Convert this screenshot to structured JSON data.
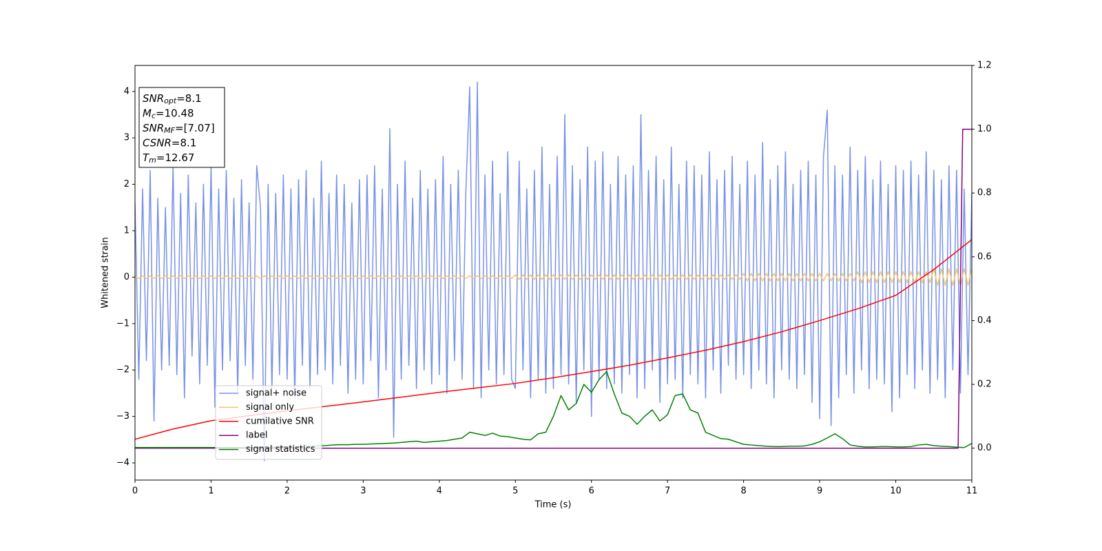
{
  "chart_data": {
    "type": "line",
    "xlabel": "Time (s)",
    "ylabel": "Whitened strain",
    "xlim": [
      0,
      11
    ],
    "ylim": [
      -4.37,
      4.56
    ],
    "y2lim": [
      -0.1,
      1.2
    ],
    "xticks": [
      0,
      1,
      2,
      3,
      4,
      5,
      6,
      7,
      8,
      9,
      10,
      11
    ],
    "yticks": [
      {
        "value": -4,
        "label": "−4"
      },
      {
        "value": -3,
        "label": "−3"
      },
      {
        "value": -2,
        "label": "−2"
      },
      {
        "value": -1,
        "label": "−1"
      },
      0,
      1,
      2,
      3,
      4
    ],
    "y2ticks": [
      {
        "value": 0,
        "label": "0.0"
      },
      0.2,
      0.4,
      0.6,
      0.8,
      {
        "value": 1,
        "label": "1.0"
      },
      1.2
    ],
    "annotation_lines": [
      {
        "text": "SNR",
        "sub": "opt",
        "rest": "=8.1"
      },
      {
        "text": "M",
        "sub": "c",
        "rest": "=10.48"
      },
      {
        "text": "SNR",
        "sub": "MF",
        "rest": "=[7.07]"
      },
      {
        "text": "CSNR",
        "rest": "=8.1"
      },
      {
        "text": "T",
        "sub": "m",
        "rest": "=12.67"
      }
    ],
    "x": [
      0,
      0.05,
      0.1,
      0.15,
      0.2,
      0.25,
      0.3,
      0.35,
      0.4,
      0.45,
      0.5,
      0.55,
      0.6,
      0.65,
      0.7,
      0.75,
      0.8,
      0.85,
      0.9,
      0.95,
      1,
      1.05,
      1.1,
      1.15,
      1.2,
      1.25,
      1.3,
      1.35,
      1.4,
      1.45,
      1.5,
      1.55,
      1.6,
      1.65,
      1.7,
      1.75,
      1.8,
      1.85,
      1.9,
      1.95,
      2,
      2.05,
      2.1,
      2.15,
      2.2,
      2.25,
      2.3,
      2.35,
      2.4,
      2.45,
      2.5,
      2.55,
      2.6,
      2.65,
      2.7,
      2.75,
      2.8,
      2.85,
      2.9,
      2.95,
      3,
      3.05,
      3.1,
      3.15,
      3.2,
      3.25,
      3.3,
      3.35,
      3.4,
      3.45,
      3.5,
      3.55,
      3.6,
      3.65,
      3.7,
      3.75,
      3.8,
      3.85,
      3.9,
      3.95,
      4,
      4.05,
      4.1,
      4.15,
      4.2,
      4.25,
      4.3,
      4.35,
      4.4,
      4.45,
      4.5,
      4.55,
      4.6,
      4.65,
      4.7,
      4.75,
      4.8,
      4.85,
      4.9,
      4.95,
      5,
      5.05,
      5.1,
      5.15,
      5.2,
      5.25,
      5.3,
      5.35,
      5.4,
      5.45,
      5.5,
      5.55,
      5.6,
      5.65,
      5.7,
      5.75,
      5.8,
      5.85,
      5.9,
      5.95,
      6,
      6.05,
      6.1,
      6.15,
      6.2,
      6.25,
      6.3,
      6.35,
      6.4,
      6.45,
      6.5,
      6.55,
      6.6,
      6.65,
      6.7,
      6.75,
      6.8,
      6.85,
      6.9,
      6.95,
      7,
      7.05,
      7.1,
      7.15,
      7.2,
      7.25,
      7.3,
      7.35,
      7.4,
      7.45,
      7.5,
      7.55,
      7.6,
      7.65,
      7.7,
      7.75,
      7.8,
      7.85,
      7.9,
      7.95,
      8,
      8.05,
      8.1,
      8.15,
      8.2,
      8.25,
      8.3,
      8.35,
      8.4,
      8.45,
      8.5,
      8.55,
      8.6,
      8.65,
      8.7,
      8.75,
      8.8,
      8.85,
      8.9,
      8.95,
      9,
      9.05,
      9.1,
      9.15,
      9.2,
      9.25,
      9.3,
      9.35,
      9.4,
      9.45,
      9.5,
      9.55,
      9.6,
      9.65,
      9.7,
      9.75,
      9.8,
      9.85,
      9.9,
      9.95,
      10,
      10.05,
      10.1,
      10.15,
      10.2,
      10.25,
      10.3,
      10.35,
      10.4,
      10.45,
      10.5,
      10.55,
      10.6,
      10.65,
      10.7,
      10.75,
      10.8,
      10.85,
      10.9,
      10.95,
      11
    ],
    "series": [
      {
        "name": "signal+ noise",
        "color": "#7891e6",
        "values": [
          1.6,
          -2.2,
          1.9,
          -1.8,
          2.3,
          -3.1,
          1.7,
          -2.0,
          1.5,
          -1.9,
          2.4,
          -2.1,
          1.8,
          -2.6,
          2.2,
          -1.7,
          1.6,
          -2.3,
          2.0,
          -1.9,
          2.4,
          -2.8,
          1.9,
          -2.0,
          2.3,
          -1.8,
          1.7,
          -2.5,
          2.1,
          -1.9,
          1.6,
          -2.2,
          2.4,
          1.5,
          -3.95,
          2.0,
          -2.4,
          1.8,
          -2.1,
          2.2,
          -2.2,
          1.9,
          -2.6,
          2.1,
          -1.9,
          2.3,
          -2.4,
          1.7,
          -2.1,
          2.5,
          -2.0,
          1.8,
          -2.3,
          2.2,
          -1.9,
          2.0,
          -2.5,
          1.6,
          -2.2,
          2.1,
          -2.3,
          2.2,
          -1.8,
          2.4,
          -2.6,
          1.9,
          -2.0,
          3.2,
          -3.45,
          2.0,
          -2.2,
          2.5,
          -1.9,
          1.7,
          -2.4,
          2.3,
          -2.0,
          1.9,
          -2.3,
          2.1,
          -2.1,
          2.6,
          -2.5,
          2.0,
          -1.8,
          2.3,
          -2.2,
          1.9,
          4.1,
          -2.4,
          4.2,
          -2.6,
          2.2,
          -2.0,
          2.5,
          -2.3,
          1.8,
          -2.1,
          2.7,
          -2.2,
          -2.4,
          2.5,
          -2.0,
          1.9,
          -2.6,
          2.3,
          -2.2,
          2.8,
          -2.5,
          2.0,
          -2.4,
          2.6,
          -2.1,
          3.5,
          -2.3,
          2.4,
          -2.7,
          2.1,
          -2.0,
          2.8,
          -3.0,
          2.5,
          -2.2,
          2.7,
          -2.4,
          2.0,
          -2.3,
          2.6,
          -2.5,
          2.2,
          -2.1,
          2.4,
          -2.6,
          3.5,
          -2.4,
          2.3,
          -2.0,
          2.6,
          -2.7,
          2.1,
          -2.3,
          2.8,
          -2.2,
          2.0,
          -2.6,
          2.5,
          -2.1,
          2.4,
          -2.3,
          2.2,
          -2.6,
          2.7,
          -2.0,
          2.1,
          -2.5,
          2.3,
          -1.9,
          2.6,
          -2.2,
          2.0,
          -2.1,
          2.5,
          -2.4,
          2.2,
          -2.0,
          2.9,
          -2.3,
          2.1,
          -2.6,
          2.4,
          -2.0,
          2.7,
          -2.2,
          2.0,
          -2.4,
          2.3,
          -2.1,
          2.5,
          -2.7,
          2.2,
          -3.05,
          2.6,
          3.6,
          -3.2,
          2.4,
          -2.6,
          2.2,
          -2.1,
          2.8,
          -2.5,
          2.3,
          -2.0,
          2.6,
          -2.4,
          2.1,
          -2.2,
          2.5,
          -2.3,
          2.0,
          -2.9,
          2.4,
          -2.6,
          2.3,
          -2.1,
          2.5,
          -2.4,
          2.2,
          -2.0,
          2.7,
          -2.5,
          2.3,
          -2.2,
          2.1,
          -2.6,
          2.4,
          -2.0,
          2.3,
          -2.5,
          1.9,
          -2.1,
          1.8
        ]
      },
      {
        "name": "signal only",
        "color": "#f5c46e",
        "values": [
          0.03,
          -0.03,
          0.03,
          -0.03,
          0.03,
          -0.03,
          0.03,
          -0.03,
          0.03,
          -0.03,
          0.03,
          -0.03,
          0.03,
          -0.03,
          0.03,
          -0.03,
          0.03,
          -0.03,
          0.03,
          -0.03,
          0.03,
          -0.03,
          0.03,
          -0.03,
          0.03,
          -0.03,
          0.03,
          -0.03,
          0.03,
          -0.03,
          0.03,
          -0.03,
          0.03,
          -0.03,
          0.03,
          -0.03,
          0.03,
          -0.03,
          0.03,
          -0.03,
          0.03,
          -0.03,
          0.03,
          -0.03,
          0.03,
          -0.03,
          0.03,
          -0.03,
          0.03,
          -0.03,
          0.03,
          -0.03,
          0.03,
          -0.03,
          0.03,
          -0.03,
          0.03,
          -0.03,
          0.03,
          -0.03,
          0.03,
          -0.03,
          0.03,
          -0.03,
          0.03,
          -0.03,
          0.03,
          -0.03,
          0.03,
          -0.03,
          0.03,
          -0.03,
          0.03,
          -0.03,
          0.03,
          -0.03,
          0.03,
          -0.03,
          0.03,
          -0.03,
          0.03,
          -0.03,
          0.03,
          -0.03,
          0.03,
          -0.03,
          0.03,
          -0.03,
          0.03,
          -0.03,
          0.03,
          -0.03,
          0.03,
          -0.03,
          0.03,
          -0.03,
          0.03,
          -0.03,
          0.03,
          -0.03,
          0.05,
          -0.05,
          0.05,
          -0.05,
          0.05,
          -0.05,
          0.05,
          -0.05,
          0.05,
          -0.05,
          0.05,
          -0.05,
          0.05,
          -0.05,
          0.05,
          -0.05,
          0.05,
          -0.05,
          0.05,
          -0.05,
          0.05,
          -0.05,
          0.05,
          -0.05,
          0.05,
          -0.05,
          0.05,
          -0.05,
          0.05,
          -0.05,
          0.05,
          -0.05,
          0.05,
          -0.05,
          0.05,
          -0.05,
          0.05,
          -0.05,
          0.05,
          -0.05,
          0.05,
          -0.05,
          0.05,
          -0.05,
          0.05,
          -0.05,
          0.05,
          -0.05,
          0.05,
          -0.05,
          0.05,
          -0.05,
          0.05,
          -0.05,
          0.05,
          -0.05,
          0.05,
          -0.05,
          0.05,
          -0.05,
          0.08,
          -0.08,
          0.08,
          -0.08,
          0.08,
          -0.08,
          0.08,
          -0.08,
          0.08,
          -0.08,
          0.08,
          -0.08,
          0.08,
          -0.08,
          0.08,
          -0.08,
          0.08,
          -0.08,
          0.08,
          -0.08,
          0.08,
          -0.08,
          0.08,
          -0.08,
          0.08,
          -0.08,
          0.08,
          -0.08,
          0.08,
          -0.08,
          0.12,
          -0.12,
          0.12,
          -0.12,
          0.12,
          -0.12,
          0.12,
          -0.12,
          0.12,
          -0.12,
          0.12,
          -0.12,
          0.12,
          -0.12,
          0.12,
          -0.12,
          0.12,
          -0.12,
          0.12,
          -0.12,
          0.18,
          -0.18,
          0.18,
          -0.18,
          0.18,
          -0.18,
          0.18,
          -0.18,
          0.18,
          -0.18,
          0.18
        ]
      },
      {
        "name": "cumilative SNR",
        "color": "#ff0000",
        "axis": "y2",
        "x": [
          0,
          0.5,
          1,
          1.5,
          2,
          2.5,
          3,
          3.5,
          4,
          4.5,
          5,
          5.5,
          6,
          6.5,
          7,
          7.5,
          8,
          8.5,
          9,
          9.5,
          10,
          10.5,
          11
        ],
        "values": [
          0.028,
          0.06,
          0.086,
          0.102,
          0.117,
          0.131,
          0.145,
          0.16,
          0.175,
          0.189,
          0.203,
          0.221,
          0.24,
          0.26,
          0.283,
          0.307,
          0.334,
          0.365,
          0.4,
          0.437,
          0.479,
          0.56,
          0.654
        ]
      },
      {
        "name": "label",
        "color": "#800080",
        "axis": "y2",
        "x": [
          0,
          10.82,
          10.88,
          11
        ],
        "values": [
          0,
          0,
          1,
          1
        ]
      },
      {
        "name": "signal statistics",
        "color": "#008000",
        "axis": "y2",
        "x": [
          0,
          0.1,
          0.2,
          0.3,
          0.4,
          0.5,
          0.6,
          0.7,
          0.8,
          0.9,
          1,
          1.1,
          1.2,
          1.3,
          1.4,
          1.5,
          1.6,
          1.7,
          1.8,
          1.9,
          2,
          2.1,
          2.2,
          2.3,
          2.4,
          2.5,
          2.6,
          2.7,
          2.8,
          2.9,
          3,
          3.1,
          3.2,
          3.3,
          3.4,
          3.5,
          3.6,
          3.7,
          3.8,
          3.9,
          4,
          4.1,
          4.2,
          4.3,
          4.4,
          4.5,
          4.6,
          4.7,
          4.8,
          4.9,
          5,
          5.1,
          5.2,
          5.3,
          5.4,
          5.5,
          5.6,
          5.7,
          5.8,
          5.9,
          6,
          6.1,
          6.2,
          6.3,
          6.4,
          6.5,
          6.6,
          6.7,
          6.8,
          6.9,
          7,
          7.1,
          7.2,
          7.3,
          7.4,
          7.5,
          7.6,
          7.7,
          7.8,
          7.9,
          8,
          8.1,
          8.2,
          8.3,
          8.4,
          8.5,
          8.6,
          8.7,
          8.8,
          8.9,
          9,
          9.1,
          9.2,
          9.3,
          9.4,
          9.5,
          9.6,
          9.7,
          9.8,
          9.9,
          10,
          10.1,
          10.2,
          10.3,
          10.4,
          10.5,
          10.6,
          10.7,
          10.8,
          10.9,
          11
        ],
        "values": [
          0.002,
          0.002,
          0.002,
          0.002,
          0.002,
          0.002,
          0.002,
          0.002,
          0.002,
          0.002,
          0.002,
          0.002,
          0.002,
          0.002,
          0.002,
          0.003,
          0.003,
          0.003,
          0.003,
          0.004,
          0.004,
          0.004,
          0.005,
          0.006,
          0.007,
          0.008,
          0.01,
          0.011,
          0.011,
          0.012,
          0.012,
          0.013,
          0.014,
          0.015,
          0.016,
          0.018,
          0.02,
          0.022,
          0.018,
          0.02,
          0.022,
          0.024,
          0.028,
          0.032,
          0.05,
          0.045,
          0.04,
          0.047,
          0.038,
          0.036,
          0.032,
          0.028,
          0.026,
          0.045,
          0.05,
          0.1,
          0.165,
          0.12,
          0.14,
          0.2,
          0.175,
          0.215,
          0.24,
          0.17,
          0.11,
          0.1,
          0.075,
          0.1,
          0.12,
          0.085,
          0.105,
          0.165,
          0.17,
          0.12,
          0.11,
          0.05,
          0.04,
          0.03,
          0.028,
          0.02,
          0.012,
          0.01,
          0.008,
          0.006,
          0.005,
          0.005,
          0.006,
          0.006,
          0.007,
          0.012,
          0.02,
          0.032,
          0.045,
          0.03,
          0.01,
          0.006,
          0.004,
          0.004,
          0.005,
          0.005,
          0.004,
          0.004,
          0.005,
          0.01,
          0.012,
          0.008,
          0.006,
          0.005,
          0.003,
          0.002,
          0.015
        ]
      }
    ]
  }
}
